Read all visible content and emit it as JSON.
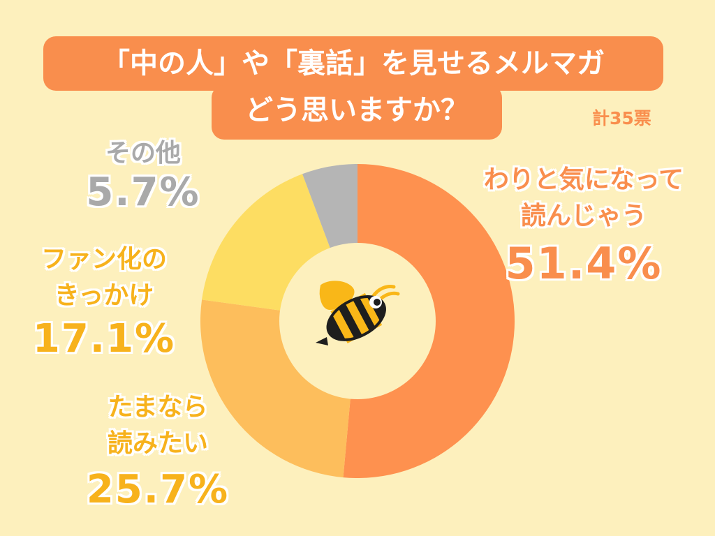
{
  "title": {
    "line1": "「中の人」や「裏話」を見せるメルマガ",
    "line2": "どう思いますか？"
  },
  "total": "計35票",
  "chart_data": {
    "type": "pie",
    "variant": "donut",
    "categories": [
      "わりと気になって読んじゃう",
      "たまなら読みたい",
      "ファン化のきっかけ",
      "その他"
    ],
    "values": [
      51.4,
      25.7,
      17.1,
      5.7
    ],
    "labels": [
      {
        "name_lines": [
          "わりと気になって",
          "読んじゃう"
        ],
        "pct": "51.4%"
      },
      {
        "name_lines": [
          "たまなら",
          "読みたい"
        ],
        "pct": "25.7%"
      },
      {
        "name_lines": [
          "ファン化の",
          "きっかけ"
        ],
        "pct": "17.1%"
      },
      {
        "name_lines": [
          "その他"
        ],
        "pct": "5.7%"
      }
    ],
    "colors": [
      "#fe914f",
      "#fdbe5c",
      "#fddd62",
      "#b5b5b5"
    ],
    "center_icon": "bee-icon"
  }
}
